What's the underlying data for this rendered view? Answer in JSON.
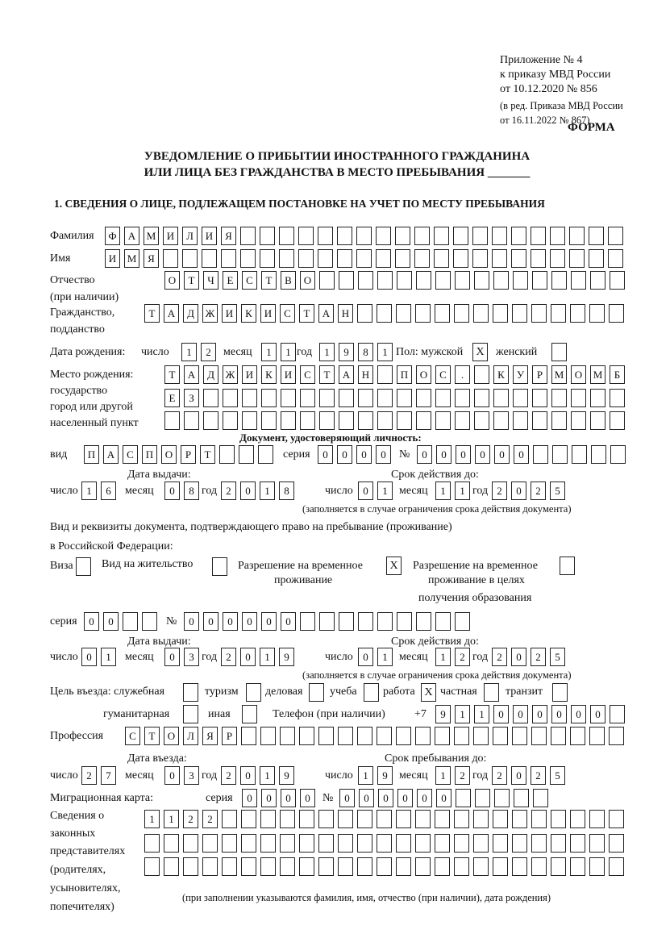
{
  "header": {
    "appendix": "Приложение № 4",
    "order": "к приказу МВД России",
    "order_date": "от 10.12.2020 № 856",
    "edition1": "(в ред. Приказа МВД России",
    "edition2": "от 16.11.2022 № 867)",
    "form_label": "ФОРМА",
    "title1": "УВЕДОМЛЕНИЕ О ПРИБЫТИИ ИНОСТРАННОГО ГРАЖДАНИНА",
    "title2": "ИЛИ ЛИЦА БЕЗ ГРАЖДАНСТВА В МЕСТО ПРЕБЫВАНИЯ _______",
    "section1": "1. СВЕДЕНИЯ О ЛИЦЕ, ПОДЛЕЖАЩЕМ ПОСТАНОВКЕ НА УЧЕТ ПО МЕСТУ ПРЕБЫВАНИЯ"
  },
  "surname": {
    "label": "Фамилия",
    "cells": [
      "Ф",
      "А",
      "М",
      "И",
      "Л",
      "И",
      "Я",
      "",
      "",
      "",
      "",
      "",
      "",
      "",
      "",
      "",
      "",
      "",
      "",
      "",
      "",
      "",
      "",
      "",
      "",
      "",
      ""
    ]
  },
  "name": {
    "label": "Имя",
    "cells": [
      "И",
      "М",
      "Я",
      "",
      "",
      "",
      "",
      "",
      "",
      "",
      "",
      "",
      "",
      "",
      "",
      "",
      "",
      "",
      "",
      "",
      "",
      "",
      "",
      "",
      "",
      "",
      ""
    ]
  },
  "patronymic": {
    "label1": "Отчество",
    "label2": "(при наличии)",
    "cells": [
      "О",
      "Т",
      "Ч",
      "Е",
      "С",
      "Т",
      "В",
      "О",
      "",
      "",
      "",
      "",
      "",
      "",
      "",
      "",
      "",
      "",
      "",
      "",
      "",
      "",
      "",
      ""
    ]
  },
  "citizenship": {
    "label1": "Гражданство,",
    "label2": "подданство",
    "cells": [
      "Т",
      "А",
      "Д",
      "Ж",
      "И",
      "К",
      "И",
      "С",
      "Т",
      "А",
      "Н",
      "",
      "",
      "",
      "",
      "",
      "",
      "",
      "",
      "",
      "",
      "",
      "",
      "",
      ""
    ]
  },
  "birth": {
    "label": "Дата рождения:",
    "day_label": "число",
    "day": [
      "1",
      "2"
    ],
    "month_label": "месяц",
    "month": [
      "1",
      "1"
    ],
    "year_label": "год",
    "year": [
      "1",
      "9",
      "8",
      "1"
    ],
    "sex_label": "Пол: мужской",
    "male": "X",
    "female_label": "женский",
    "female": ""
  },
  "birthplace": {
    "label1": "Место рождения:",
    "label2": "государство",
    "label3": "город или другой",
    "label4": "населенный пункт",
    "row1": [
      "Т",
      "А",
      "Д",
      "Ж",
      "И",
      "К",
      "И",
      "С",
      "Т",
      "А",
      "Н",
      "",
      "П",
      "О",
      "С",
      ".",
      "",
      "К",
      "У",
      "Р",
      "М",
      "О",
      "М",
      "Б"
    ],
    "row2": [
      "Е",
      "З",
      "",
      "",
      "",
      "",
      "",
      "",
      "",
      "",
      "",
      "",
      "",
      "",
      "",
      "",
      "",
      "",
      "",
      "",
      "",
      "",
      "",
      ""
    ],
    "row3": [
      "",
      "",
      "",
      "",
      "",
      "",
      "",
      "",
      "",
      "",
      "",
      "",
      "",
      "",
      "",
      "",
      "",
      "",
      "",
      "",
      "",
      "",
      "",
      ""
    ]
  },
  "id_doc": {
    "heading": "Документ, удостоверяющий личность:",
    "kind_label": "вид",
    "kind": [
      "П",
      "А",
      "С",
      "П",
      "О",
      "Р",
      "Т",
      "",
      "",
      ""
    ],
    "series_label": "серия",
    "series": [
      "0",
      "0",
      "0",
      "0"
    ],
    "number_label": "№",
    "number": [
      "0",
      "0",
      "0",
      "0",
      "0",
      "0",
      "",
      "",
      "",
      "",
      ""
    ],
    "issue_label": "Дата выдачи:",
    "valid_label": "Срок действия до:",
    "day_label": "число",
    "month_label": "месяц",
    "year_label": "год",
    "issue_day": [
      "1",
      "6"
    ],
    "issue_month": [
      "0",
      "8"
    ],
    "issue_year": [
      "2",
      "0",
      "1",
      "8"
    ],
    "valid_day": [
      "0",
      "1"
    ],
    "valid_month": [
      "1",
      "1"
    ],
    "valid_year": [
      "2",
      "0",
      "2",
      "5"
    ],
    "note": "(заполняется в случае ограничения срока действия документа)"
  },
  "stay_doc": {
    "heading1": "Вид и реквизиты документа, подтверждающего право на пребывание (проживание)",
    "heading2": "в Российской Федерации:",
    "visa_label": "Виза",
    "visa": "",
    "residence_label": "Вид на жительство",
    "residence": "",
    "trp_label1": "Разрешение на временное",
    "trp_label2": "проживание",
    "trp": "X",
    "trp_edu_label1": "Разрешение на временное",
    "trp_edu_label2": "проживание в целях",
    "trp_edu_label3": "получения образования",
    "trp_edu": "",
    "series_label": "серия",
    "series": [
      "0",
      "0",
      "",
      ""
    ],
    "number_label": "№",
    "number": [
      "0",
      "0",
      "0",
      "0",
      "0",
      "0",
      "",
      "",
      "",
      "",
      "",
      "",
      "",
      "",
      ""
    ],
    "issue_label": "Дата выдачи:",
    "valid_label": "Срок действия до:",
    "day_label": "число",
    "month_label": "месяц",
    "year_label": "год",
    "issue_day": [
      "0",
      "1"
    ],
    "issue_month": [
      "0",
      "3"
    ],
    "issue_year": [
      "2",
      "0",
      "1",
      "9"
    ],
    "valid_day": [
      "0",
      "1"
    ],
    "valid_month": [
      "1",
      "2"
    ],
    "valid_year": [
      "2",
      "0",
      "2",
      "5"
    ],
    "note": "(заполняется в случае ограничения срока действия документа)"
  },
  "purpose": {
    "label": "Цель въезда: служебная",
    "official": "",
    "tourism_label": "туризм",
    "tourism": "",
    "business_label": "деловая",
    "business": "",
    "study_label": "учеба",
    "study": "",
    "work_label": "работа",
    "work": "X",
    "private_label": "частная",
    "private": "",
    "transit_label": "транзит",
    "transit": "",
    "humanitarian_label": "гуманитарная",
    "humanitarian": "",
    "other_label": "иная",
    "other": ""
  },
  "phone": {
    "label": "Телефон (при наличии)",
    "prefix": "+7",
    "cells": [
      "9",
      "1",
      "1",
      "0",
      "0",
      "0",
      "0",
      "0",
      "0",
      ""
    ]
  },
  "profession": {
    "label": "Профессия",
    "cells": [
      "С",
      "Т",
      "О",
      "Л",
      "Я",
      "Р",
      "",
      "",
      "",
      "",
      "",
      "",
      "",
      "",
      "",
      "",
      "",
      "",
      "",
      "",
      "",
      "",
      "",
      "",
      "",
      ""
    ]
  },
  "entry": {
    "entry_label": "Дата въезда:",
    "stay_label": "Срок пребывания до:",
    "day_label": "число",
    "month_label": "месяц",
    "year_label": "год",
    "entry_day": [
      "2",
      "7"
    ],
    "entry_month": [
      "0",
      "3"
    ],
    "entry_year": [
      "2",
      "0",
      "1",
      "9"
    ],
    "stay_day": [
      "1",
      "9"
    ],
    "stay_month": [
      "1",
      "2"
    ],
    "stay_year": [
      "2",
      "0",
      "2",
      "5"
    ]
  },
  "migration_card": {
    "label": "Миграционная карта:",
    "series_label": "серия",
    "series": [
      "0",
      "0",
      "0",
      "0"
    ],
    "number_label": "№",
    "number": [
      "0",
      "0",
      "0",
      "0",
      "0",
      "0",
      "",
      "",
      "",
      "",
      ""
    ]
  },
  "representatives": {
    "label1": "Сведения о",
    "label2": "законных",
    "label3": "представителях",
    "label4": "(родителях,",
    "label5": "усыновителях,",
    "label6": "попечителях)",
    "row1": [
      "1",
      "1",
      "2",
      "2",
      "",
      "",
      "",
      "",
      "",
      "",
      "",
      "",
      "",
      "",
      "",
      "",
      "",
      "",
      "",
      "",
      "",
      "",
      "",
      "",
      ""
    ],
    "row2": [
      "",
      "",
      "",
      "",
      "",
      "",
      "",
      "",
      "",
      "",
      "",
      "",
      "",
      "",
      "",
      "",
      "",
      "",
      "",
      "",
      "",
      "",
      "",
      "",
      ""
    ],
    "row3": [
      "",
      "",
      "",
      "",
      "",
      "",
      "",
      "",
      "",
      "",
      "",
      "",
      "",
      "",
      "",
      "",
      "",
      "",
      "",
      "",
      "",
      "",
      "",
      "",
      ""
    ],
    "note": "(при заполнении указываются фамилия, имя, отчество (при наличии), дата рождения)"
  }
}
